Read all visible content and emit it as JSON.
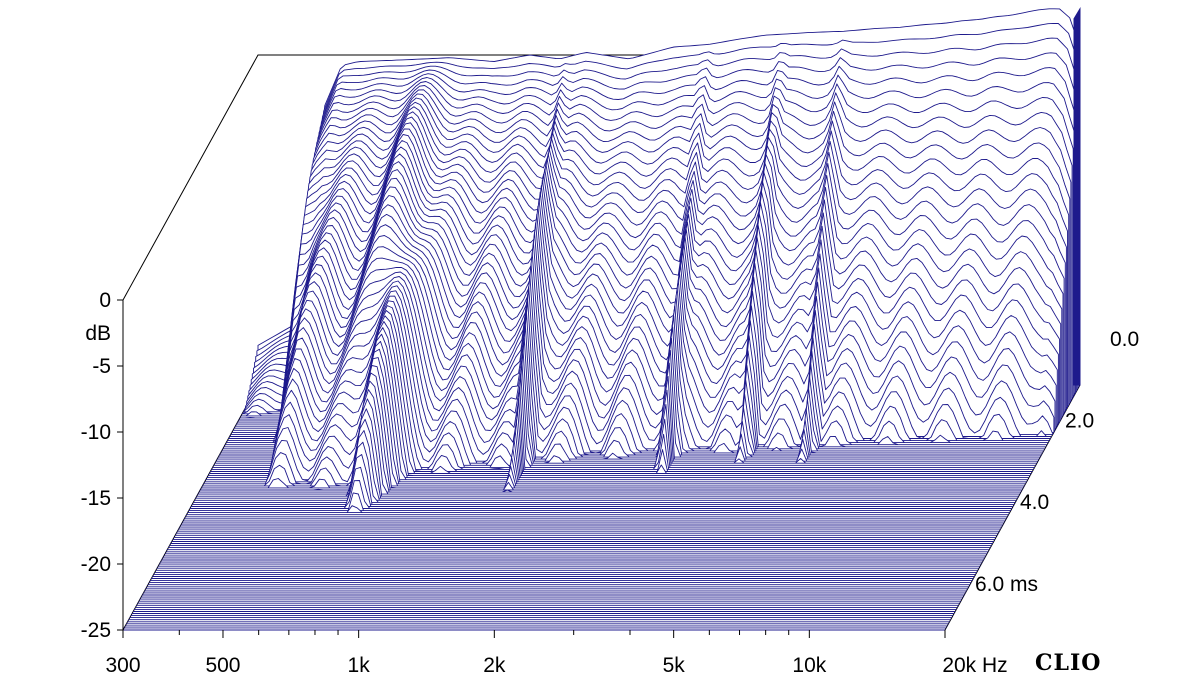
{
  "brand": "CLIO",
  "colors": {
    "trace": "#1e1a8c",
    "background": "#ffffff",
    "axis": "#000000"
  },
  "chart_data": {
    "type": "waterfall",
    "title": "",
    "x_axis": {
      "scale": "log",
      "range": [
        300,
        20000
      ],
      "ticks": [
        {
          "value": 300,
          "label": "300"
        },
        {
          "value": 500,
          "label": "500"
        },
        {
          "value": 1000,
          "label": "1k"
        },
        {
          "value": 2000,
          "label": "2k"
        },
        {
          "value": 5000,
          "label": "5k"
        },
        {
          "value": 10000,
          "label": "10k"
        },
        {
          "value": 20000,
          "label": "20k Hz"
        }
      ],
      "minor_ticks": [
        400,
        600,
        700,
        800,
        900,
        3000,
        4000,
        6000,
        7000,
        8000,
        9000
      ]
    },
    "y_axis": {
      "range": [
        -25,
        0
      ],
      "unit_label": "dB",
      "ticks": [
        {
          "value": 0,
          "label": "0"
        },
        {
          "value": -5,
          "label": "-5"
        },
        {
          "value": -10,
          "label": "-10"
        },
        {
          "value": -15,
          "label": "-15"
        },
        {
          "value": -20,
          "label": "-20"
        },
        {
          "value": -25,
          "label": "-25"
        }
      ]
    },
    "z_axis": {
      "range": [
        0,
        6.0
      ],
      "ticks": [
        {
          "value": 0,
          "label": "0.0"
        },
        {
          "value": 2.0,
          "label": "2.0"
        },
        {
          "value": 4.0,
          "label": "4.0"
        },
        {
          "value": 6.0,
          "label": "6.0  ms"
        }
      ]
    },
    "slices": 120,
    "anchor_response_db": {
      "freq_hz": [
        300,
        380,
        400,
        420,
        460,
        500,
        600,
        700,
        800,
        1000,
        1200,
        1400,
        1600,
        2000,
        2500,
        3000,
        3500,
        4000,
        4500,
        5000,
        6000,
        7000,
        8000,
        9000,
        10000,
        11000,
        12000,
        13000,
        14000,
        15000,
        16000,
        17000,
        18000,
        19000,
        20000
      ],
      "initial_db": [
        -22,
        -20,
        -12,
        -4,
        -0.8,
        -0.5,
        -0.4,
        -0.3,
        -0.2,
        -0.5,
        0,
        -0.3,
        0.2,
        -0.3,
        0.6,
        0.8,
        1.2,
        1.5,
        1.6,
        1.7,
        1.8,
        2.0,
        2.1,
        2.3,
        2.4,
        2.6,
        2.7,
        2.9,
        3.0,
        3.2,
        3.4,
        3.5,
        3.5,
        2.8,
        0.5
      ]
    }
  }
}
